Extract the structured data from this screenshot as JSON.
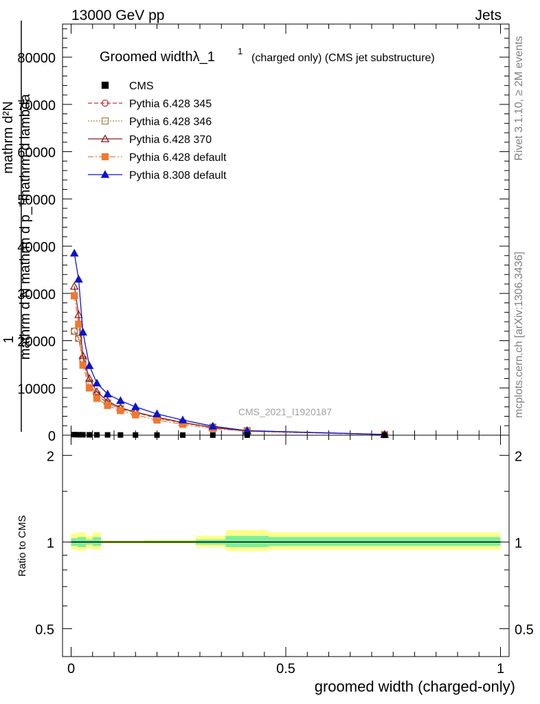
{
  "header": {
    "left": "13000 GeV pp",
    "right": "Jets"
  },
  "side_labels": {
    "rivet": "Rivet 3.1.10, ≥ 2M events",
    "mcplots": "mcplots.cern.ch [arXiv:1306.3436]"
  },
  "watermark": "CMS_2021_I1920187",
  "colors": {
    "cms": "#000000",
    "p345": "#c0303a",
    "p346": "#a08848",
    "p370": "#8a1a1a",
    "p6def": "#f07830",
    "p8def": "#0a14d0",
    "band_yellow": "#ffff88",
    "band_green": "#7dee9a"
  },
  "chart_data": {
    "type": "line",
    "title_main": "Groomed widthλ_1",
    "title_sup": "1",
    "title_sub": "(charged only) (CMS jet substructure)",
    "xlabel": "groomed width (charged-only)",
    "ylabel_top": "1",
    "ylabel_num": "mathrm d²N",
    "ylabel_den": "mathrm d N  mathrm d p_ᵀmathrm d lambda",
    "ratio_ylabel": "Ratio to CMS",
    "xlim": [
      -0.02,
      1.02
    ],
    "ylim": [
      0,
      87000
    ],
    "ratio_ylim": [
      0.4,
      2.35
    ],
    "x_ticks": [
      {
        "value": 0,
        "label": "0"
      },
      {
        "value": 0.5,
        "label": "0.5"
      },
      {
        "value": 1,
        "label": "1"
      }
    ],
    "y_ticks": [
      {
        "value": 0,
        "label": "0"
      },
      {
        "value": 10000,
        "label": "10000"
      },
      {
        "value": 20000,
        "label": "20000"
      },
      {
        "value": 30000,
        "label": "30000"
      },
      {
        "value": 40000,
        "label": "40000"
      },
      {
        "value": 50000,
        "label": "50000"
      },
      {
        "value": 60000,
        "label": "60000"
      },
      {
        "value": 70000,
        "label": "70000"
      },
      {
        "value": 80000,
        "label": "80000"
      }
    ],
    "ratio_ticks": [
      {
        "value": 0.5,
        "label": "0.5"
      },
      {
        "value": 1,
        "label": "1"
      },
      {
        "value": 2,
        "label": "2"
      }
    ],
    "x": [
      0.0075,
      0.0175,
      0.0275,
      0.0425,
      0.06,
      0.085,
      0.115,
      0.15,
      0.2,
      0.26,
      0.33,
      0.41,
      0.73
    ],
    "cms": [
      120,
      100,
      90,
      80,
      70,
      60,
      50,
      40,
      30,
      25,
      20,
      10,
      5
    ],
    "series": [
      {
        "name": "Pythia 6.428 345",
        "key": "p345",
        "marker": "circle-open",
        "dash": "6,3",
        "values": [
          22000,
          20500,
          16000,
          11000,
          8500,
          6800,
          5600,
          4800,
          3600,
          2600,
          1700,
          950,
          150
        ]
      },
      {
        "name": "Pythia 6.428 346",
        "key": "p346",
        "marker": "square-open",
        "dash": "2,2",
        "values": [
          22000,
          20500,
          16000,
          11000,
          8500,
          6800,
          5600,
          4800,
          3600,
          2600,
          1700,
          950,
          150
        ]
      },
      {
        "name": "Pythia 6.428 370",
        "key": "p370",
        "marker": "triangle-open",
        "dash": "",
        "values": [
          31500,
          25500,
          16800,
          12000,
          9200,
          7200,
          5800,
          4900,
          3800,
          2700,
          1600,
          900,
          150
        ]
      },
      {
        "name": "Pythia 6.428 default",
        "key": "p6def",
        "marker": "square-filled",
        "dash": "8,3,2,3",
        "values": [
          29500,
          23500,
          14800,
          10000,
          7800,
          6300,
          5200,
          4300,
          3200,
          2300,
          1400,
          800,
          120
        ]
      },
      {
        "name": "Pythia 8.308 default",
        "key": "p8def",
        "marker": "triangle-filled",
        "dash": "",
        "values": [
          38500,
          33000,
          21800,
          14700,
          11000,
          8700,
          7300,
          6000,
          4500,
          3200,
          1900,
          950,
          150
        ]
      }
    ],
    "legend_entries": [
      {
        "label": "CMS",
        "key": "cms",
        "marker": "square-filled",
        "dash": "none"
      },
      {
        "label": "Pythia 6.428 345",
        "key": "p345",
        "marker": "circle-open",
        "dash": "6,3"
      },
      {
        "label": "Pythia 6.428 346",
        "key": "p346",
        "marker": "square-open",
        "dash": "2,2"
      },
      {
        "label": "Pythia 6.428 370",
        "key": "p370",
        "marker": "triangle-open",
        "dash": ""
      },
      {
        "label": "Pythia 6.428 default",
        "key": "p6def",
        "marker": "square-filled",
        "dash": "8,3,2,3"
      },
      {
        "label": "Pythia 8.308 default",
        "key": "p8def",
        "marker": "triangle-filled",
        "dash": ""
      }
    ],
    "ratio_bands": [
      {
        "x0": 0.0,
        "x1": 0.015,
        "yellow": [
          0.94,
          1.07
        ],
        "green": [
          0.97,
          1.03
        ]
      },
      {
        "x0": 0.015,
        "x1": 0.035,
        "yellow": [
          0.93,
          1.08
        ],
        "green": [
          0.96,
          1.04
        ]
      },
      {
        "x0": 0.035,
        "x1": 0.05,
        "yellow": [
          0.95,
          1.05
        ],
        "green": [
          0.98,
          1.02
        ]
      },
      {
        "x0": 0.05,
        "x1": 0.07,
        "yellow": [
          0.94,
          1.08
        ],
        "green": [
          0.97,
          1.04
        ]
      },
      {
        "x0": 0.07,
        "x1": 0.17,
        "yellow": [
          0.985,
          1.015
        ],
        "green": [
          0.993,
          1.007
        ]
      },
      {
        "x0": 0.17,
        "x1": 0.29,
        "yellow": [
          0.985,
          1.02
        ],
        "green": [
          0.993,
          1.01
        ]
      },
      {
        "x0": 0.29,
        "x1": 0.36,
        "yellow": [
          0.96,
          1.05
        ],
        "green": [
          0.98,
          1.02
        ]
      },
      {
        "x0": 0.36,
        "x1": 0.46,
        "yellow": [
          0.93,
          1.1
        ],
        "green": [
          0.96,
          1.05
        ]
      },
      {
        "x0": 0.46,
        "x1": 1.0,
        "yellow": [
          0.94,
          1.08
        ],
        "green": [
          0.97,
          1.04
        ]
      }
    ]
  }
}
